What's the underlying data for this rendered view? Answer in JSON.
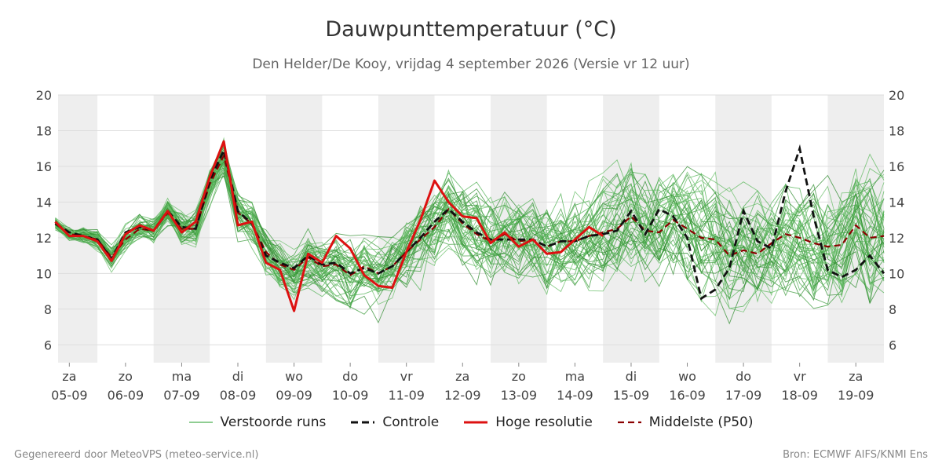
{
  "header": {
    "title": "Dauwpunttemperatuur (°C)",
    "subtitle": "Den Helder/De Kooy, vrijdag  4 september 2026 (Versie vr 12 uur)"
  },
  "footer": {
    "left": "Gegenereerd door MeteoVPS (meteo-service.nl)",
    "right": "Bron: ECMWF AIFS/KNMI Ens"
  },
  "legend": [
    {
      "key": "perturbed",
      "label": "Verstoorde runs",
      "color": "#4caf50",
      "style": "thin"
    },
    {
      "key": "control",
      "label": "Controle",
      "color": "#111111",
      "style": "dashed"
    },
    {
      "key": "hires",
      "label": "Hoge resolutie",
      "color": "#dd1111",
      "style": "solid"
    },
    {
      "key": "median",
      "label": "Middelste (P50)",
      "color": "#8b0000",
      "style": "dashed"
    }
  ],
  "chart_data": {
    "type": "line",
    "ylim": [
      5,
      20
    ],
    "yticks": [
      6,
      8,
      10,
      12,
      14,
      16,
      18,
      20
    ],
    "xlim": [
      -0.2,
      14.5
    ],
    "x_unit": "days from 05-09 00 UTC",
    "grid": true,
    "weekend_shading": [
      [
        -0.5,
        0.5
      ],
      [
        1.5,
        2.5
      ],
      [
        3.5,
        4.5
      ],
      [
        5.5,
        6.5
      ],
      [
        7.5,
        8.5
      ],
      [
        9.5,
        10.5
      ],
      [
        11.5,
        12.5
      ],
      [
        13.5,
        14.5
      ]
    ],
    "day_labels": [
      {
        "x": 0,
        "day": "za",
        "date": "05-09"
      },
      {
        "x": 1,
        "day": "zo",
        "date": "06-09"
      },
      {
        "x": 2,
        "day": "ma",
        "date": "07-09"
      },
      {
        "x": 3,
        "day": "di",
        "date": "08-09"
      },
      {
        "x": 4,
        "day": "wo",
        "date": "09-09"
      },
      {
        "x": 5,
        "day": "do",
        "date": "10-09"
      },
      {
        "x": 6,
        "day": "vr",
        "date": "11-09"
      },
      {
        "x": 7,
        "day": "za",
        "date": "12-09"
      },
      {
        "x": 8,
        "day": "zo",
        "date": "13-09"
      },
      {
        "x": 9,
        "day": "ma",
        "date": "14-09"
      },
      {
        "x": 10,
        "day": "di",
        "date": "15-09"
      },
      {
        "x": 11,
        "day": "wo",
        "date": "16-09"
      },
      {
        "x": 12,
        "day": "do",
        "date": "17-09"
      },
      {
        "x": 13,
        "day": "vr",
        "date": "18-09"
      },
      {
        "x": 14,
        "day": "za",
        "date": "19-09"
      }
    ],
    "hires": {
      "name": "Hoge resolutie",
      "x": [
        -0.25,
        0.0,
        0.25,
        0.5,
        0.75,
        1.0,
        1.25,
        1.5,
        1.75,
        2.0,
        2.25,
        2.5,
        2.75,
        3.0,
        3.25,
        3.5,
        3.75,
        4.0,
        4.25,
        4.5,
        4.75,
        5.0,
        5.25,
        5.5,
        5.75,
        6.0,
        6.25,
        6.5,
        6.75,
        7.0,
        7.25,
        7.5,
        7.75,
        8.0,
        8.25,
        8.5,
        8.75,
        9.0,
        9.25,
        9.5
      ],
      "y": [
        12.9,
        12.1,
        12.1,
        11.8,
        10.7,
        12.2,
        12.7,
        12.4,
        13.5,
        12.3,
        12.9,
        15.4,
        17.4,
        12.7,
        12.9,
        10.6,
        10.2,
        7.9,
        11.1,
        10.6,
        12.1,
        11.4,
        9.9,
        9.3,
        9.2,
        11.2,
        13.0,
        15.2,
        14.0,
        13.2,
        13.1,
        11.7,
        12.3,
        11.5,
        11.9,
        11.1,
        11.2,
        11.9,
        12.6,
        12.1
      ]
    },
    "control": {
      "name": "Controle",
      "x": [
        -0.25,
        0.0,
        0.25,
        0.5,
        0.75,
        1.0,
        1.25,
        1.5,
        1.75,
        2.0,
        2.25,
        2.5,
        2.75,
        3.0,
        3.25,
        3.5,
        3.75,
        4.0,
        4.25,
        4.5,
        4.75,
        5.0,
        5.25,
        5.5,
        5.75,
        6.0,
        6.25,
        6.5,
        6.75,
        7.0,
        7.25,
        7.5,
        7.75,
        8.0,
        8.25,
        8.5,
        8.75,
        9.0,
        9.25,
        9.5,
        9.75,
        10.0,
        10.25,
        10.5,
        10.75,
        11.0,
        11.25,
        11.5,
        11.75,
        12.0,
        12.25,
        12.5,
        12.75,
        13.0,
        13.25,
        13.5,
        13.75,
        14.0,
        14.25,
        14.5
      ],
      "y": [
        12.8,
        12.3,
        12.1,
        11.9,
        10.8,
        12.3,
        12.6,
        12.4,
        13.5,
        12.6,
        12.5,
        15.2,
        16.9,
        13.5,
        12.8,
        11.0,
        10.6,
        10.3,
        11.0,
        10.5,
        10.6,
        10.0,
        10.3,
        10.0,
        10.4,
        11.2,
        12.0,
        12.9,
        13.6,
        12.9,
        12.3,
        11.9,
        11.9,
        11.9,
        11.9,
        11.5,
        11.8,
        11.8,
        12.1,
        12.2,
        12.4,
        13.5,
        12.2,
        13.6,
        13.2,
        12.0,
        8.6,
        9.1,
        10.3,
        13.5,
        11.8,
        11.4,
        14.6,
        17.0,
        13.2,
        10.2,
        9.8,
        10.2,
        11.0,
        10.0
      ]
    },
    "median": {
      "name": "Middelste (P50)",
      "x": [
        -0.25,
        0.0,
        0.25,
        0.5,
        0.75,
        1.0,
        1.25,
        1.5,
        1.75,
        2.0,
        2.25,
        2.5,
        2.75,
        3.0,
        3.25,
        3.5,
        3.75,
        4.0,
        4.25,
        4.5,
        4.75,
        5.0,
        5.25,
        5.5,
        5.75,
        6.0,
        6.25,
        6.5,
        6.75,
        7.0,
        7.25,
        7.5,
        7.75,
        8.0,
        8.25,
        8.5,
        8.75,
        9.0,
        9.25,
        9.5,
        9.75,
        10.0,
        10.25,
        10.5,
        10.75,
        11.0,
        11.25,
        11.5,
        11.75,
        12.0,
        12.25,
        12.5,
        12.75,
        13.0,
        13.25,
        13.5,
        13.75,
        14.0,
        14.25,
        14.5
      ],
      "y": [
        12.8,
        12.2,
        12.1,
        11.9,
        10.9,
        11.9,
        12.5,
        12.4,
        13.4,
        12.5,
        12.5,
        15.0,
        16.6,
        13.4,
        12.8,
        11.2,
        10.5,
        10.2,
        10.9,
        10.4,
        10.5,
        9.9,
        10.4,
        10.0,
        10.4,
        11.2,
        11.9,
        12.6,
        13.6,
        12.8,
        12.2,
        11.8,
        12.2,
        11.8,
        11.9,
        11.5,
        11.8,
        11.8,
        12.1,
        12.3,
        12.5,
        13.2,
        12.4,
        12.3,
        13.0,
        12.5,
        12.0,
        11.9,
        11.0,
        11.3,
        11.1,
        11.7,
        12.2,
        12.0,
        11.7,
        11.5,
        11.6,
        12.7,
        12.0,
        12.1
      ]
    },
    "perturbed_runs": 50
  }
}
